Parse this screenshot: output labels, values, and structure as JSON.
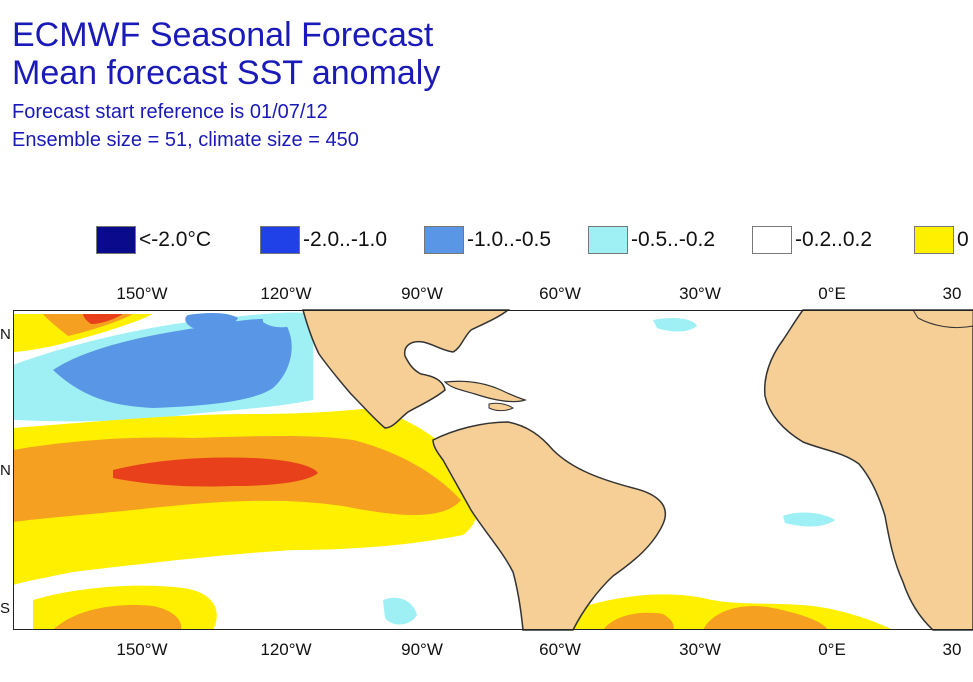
{
  "title": {
    "line1": "ECMWF Seasonal Forecast",
    "line2": "Mean forecast SST anomaly",
    "line3": "Forecast start reference is 01/07/12",
    "line4": "Ensemble size = 51, climate size = 450"
  },
  "legend": [
    {
      "label": "<-2.0°C",
      "color": "#0a0a8c"
    },
    {
      "label": "-2.0..-1.0",
      "color": "#2040e8"
    },
    {
      "label": "-1.0..-0.5",
      "color": "#5a96e6"
    },
    {
      "label": "-0.5..-0.2",
      "color": "#9ef0f4"
    },
    {
      "label": "-0.2..0.2",
      "color": "#ffffff"
    },
    {
      "label": "0",
      "color": "#fff000"
    }
  ],
  "lon_labels": [
    "150°W",
    "120°W",
    "90°W",
    "60°W",
    "30°W",
    "0°E",
    "30"
  ],
  "lat_labels": [
    "N",
    "N",
    "S"
  ],
  "colors": {
    "land": "#f5cf96",
    "coast": "#333333",
    "ocean": "#ffffff",
    "cold1": "#9ef0f4",
    "cold2": "#5a96e6",
    "cold3": "#2040e8",
    "warm1": "#fff000",
    "warm2": "#f5a020",
    "warm3": "#e8401a",
    "title": "#1a1ab8"
  }
}
